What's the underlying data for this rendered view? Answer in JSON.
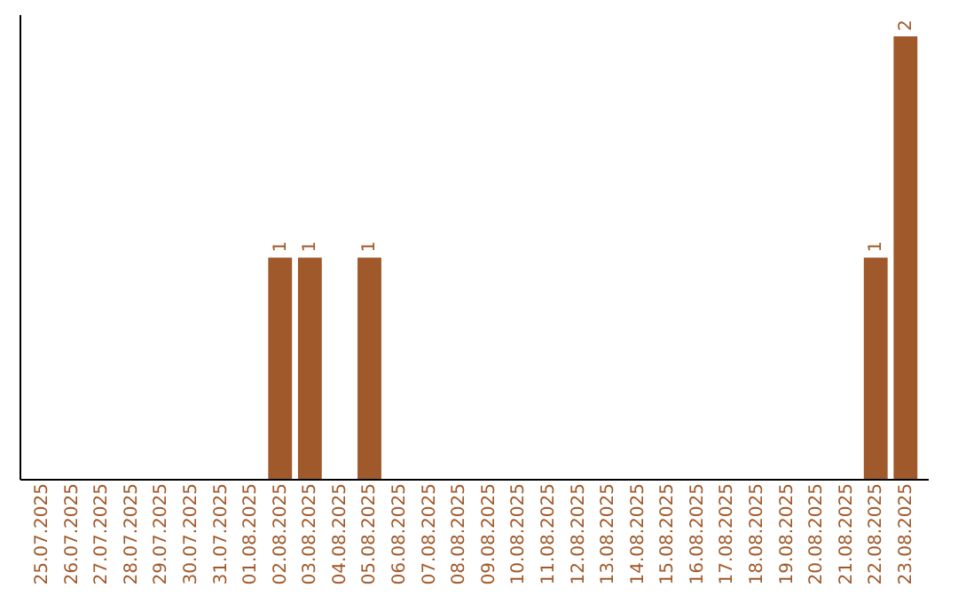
{
  "chart_data": {
    "type": "bar",
    "categories": [
      "25.07.2025",
      "26.07.2025",
      "27.07.2025",
      "28.07.2025",
      "29.07.2025",
      "30.07.2025",
      "31.07.2025",
      "01.08.2025",
      "02.08.2025",
      "03.08.2025",
      "04.08.2025",
      "05.08.2025",
      "06.08.2025",
      "07.08.2025",
      "08.08.2025",
      "09.08.2025",
      "10.08.2025",
      "11.08.2025",
      "12.08.2025",
      "13.08.2025",
      "14.08.2025",
      "15.08.2025",
      "16.08.2025",
      "17.08.2025",
      "18.08.2025",
      "19.08.2025",
      "20.08.2025",
      "21.08.2025",
      "22.08.2025",
      "23.08.2025"
    ],
    "values": [
      0,
      0,
      0,
      0,
      0,
      0,
      0,
      0,
      1,
      1,
      0,
      1,
      0,
      0,
      0,
      0,
      0,
      0,
      0,
      0,
      0,
      0,
      0,
      0,
      0,
      0,
      0,
      0,
      1,
      2
    ],
    "value_labels": [
      null,
      null,
      null,
      null,
      null,
      null,
      null,
      null,
      "1",
      "1",
      null,
      "1",
      null,
      null,
      null,
      null,
      null,
      null,
      null,
      null,
      null,
      null,
      null,
      null,
      null,
      null,
      null,
      null,
      "1",
      "2"
    ],
    "color": "#a0592a",
    "tick_labels": "x",
    "grid": false
  }
}
